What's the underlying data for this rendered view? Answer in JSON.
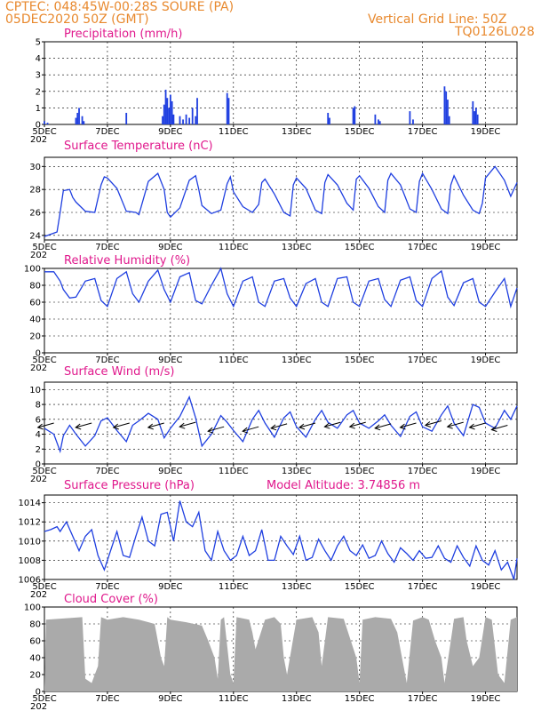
{
  "header": {
    "line1": "CPTEC:   048:45W-00:28S   SOURE (PA)",
    "line2": "05DEC2020 50Z (GMT)",
    "grid_note": "Vertical Grid Line: 50Z",
    "model_code": "TQ0126L028"
  },
  "colors": {
    "header": "#e8892e",
    "title": "#e0188c",
    "series": "#1f3fe0",
    "wind_arrow": "#000000",
    "cloud": "#aaaaaa"
  },
  "x_axis": {
    "labels": [
      "5DEC",
      "7DEC",
      "9DEC",
      "11DEC",
      "13DEC",
      "15DEC",
      "17DEC",
      "19DEC"
    ],
    "label_days": [
      0,
      2,
      4,
      6,
      8,
      10,
      12,
      14
    ],
    "start_day": 0,
    "end_day": 15,
    "year_fragment": "202"
  },
  "chart_data": [
    {
      "id": "precip",
      "type": "bar",
      "title": "Precipitation (mm/h)",
      "ylim": [
        0,
        5
      ],
      "yticks": [
        0,
        1,
        2,
        3,
        4,
        5
      ],
      "grid": true,
      "values": [
        [
          0.0,
          0.2
        ],
        [
          0.1,
          0.1
        ],
        [
          1.0,
          0.4
        ],
        [
          1.05,
          0.7
        ],
        [
          1.1,
          1.0
        ],
        [
          1.2,
          0.5
        ],
        [
          1.25,
          0.2
        ],
        [
          2.6,
          0.7
        ],
        [
          3.75,
          0.5
        ],
        [
          3.8,
          1.2
        ],
        [
          3.85,
          2.1
        ],
        [
          3.9,
          1.6
        ],
        [
          3.95,
          1.0
        ],
        [
          4.0,
          1.8
        ],
        [
          4.05,
          1.4
        ],
        [
          4.1,
          0.6
        ],
        [
          4.3,
          0.5
        ],
        [
          4.4,
          0.3
        ],
        [
          4.5,
          0.6
        ],
        [
          4.6,
          0.4
        ],
        [
          4.7,
          1.0
        ],
        [
          4.8,
          0.5
        ],
        [
          4.85,
          1.6
        ],
        [
          5.8,
          1.9
        ],
        [
          5.85,
          1.6
        ],
        [
          9.0,
          0.7
        ],
        [
          9.05,
          0.4
        ],
        [
          9.8,
          1.0
        ],
        [
          9.85,
          1.1
        ],
        [
          10.5,
          0.6
        ],
        [
          10.6,
          0.3
        ],
        [
          10.65,
          0.2
        ],
        [
          11.6,
          0.8
        ],
        [
          11.7,
          0.3
        ],
        [
          12.7,
          2.3
        ],
        [
          12.75,
          2.0
        ],
        [
          12.8,
          1.5
        ],
        [
          12.85,
          0.5
        ],
        [
          13.6,
          1.4
        ],
        [
          13.65,
          0.8
        ],
        [
          13.7,
          1.0
        ],
        [
          13.75,
          0.6
        ]
      ]
    },
    {
      "id": "temp",
      "type": "line",
      "title": "Surface Temperature (nC)",
      "ylim": [
        23.6,
        30.8
      ],
      "yticks": [
        24,
        26,
        28,
        30
      ],
      "grid": true,
      "x": [
        0,
        0.4,
        0.5,
        0.6,
        0.8,
        0.9,
        1.0,
        1.3,
        1.6,
        1.8,
        1.9,
        2.0,
        2.3,
        2.6,
        2.9,
        3.0,
        3.3,
        3.6,
        3.8,
        3.9,
        4.0,
        4.3,
        4.6,
        4.8,
        4.9,
        5.0,
        5.3,
        5.6,
        5.8,
        5.9,
        6.0,
        6.3,
        6.6,
        6.8,
        6.9,
        7.0,
        7.3,
        7.6,
        7.8,
        7.9,
        8.0,
        8.3,
        8.6,
        8.8,
        8.9,
        9.0,
        9.3,
        9.6,
        9.8,
        9.9,
        10.0,
        10.3,
        10.6,
        10.8,
        10.9,
        11.0,
        11.3,
        11.6,
        11.8,
        11.9,
        12.0,
        12.3,
        12.6,
        12.8,
        12.9,
        13.0,
        13.3,
        13.6,
        13.8,
        13.9,
        14.0,
        14.3,
        14.6,
        14.8,
        15.0
      ],
      "values": [
        23.9,
        24.3,
        26.0,
        27.9,
        28.0,
        27.3,
        26.9,
        26.1,
        26.0,
        28.4,
        29.1,
        29.0,
        28.1,
        26.1,
        26.0,
        25.8,
        28.7,
        29.4,
        28.0,
        26.0,
        25.6,
        26.4,
        28.8,
        29.2,
        28.0,
        26.6,
        25.9,
        26.2,
        28.5,
        29.1,
        27.8,
        26.5,
        26.0,
        26.7,
        28.6,
        28.9,
        27.6,
        26.0,
        25.7,
        28.4,
        29.0,
        28.1,
        26.2,
        25.9,
        28.6,
        29.3,
        28.4,
        26.8,
        26.2,
        28.9,
        29.2,
        28.1,
        26.5,
        26.0,
        28.8,
        29.4,
        28.4,
        26.3,
        26.0,
        28.7,
        29.4,
        28.0,
        26.3,
        25.9,
        28.4,
        29.2,
        27.5,
        26.2,
        25.9,
        26.8,
        29.0,
        30.0,
        28.8,
        27.4,
        28.6
      ]
    },
    {
      "id": "rh",
      "type": "line",
      "title": "Relative Humidity (%)",
      "ylim": [
        0,
        100
      ],
      "yticks": [
        0,
        20,
        40,
        60,
        80,
        100
      ],
      "grid": true,
      "x": [
        0,
        0.3,
        0.5,
        0.6,
        0.8,
        1.0,
        1.3,
        1.6,
        1.8,
        2.0,
        2.3,
        2.6,
        2.8,
        3.0,
        3.3,
        3.6,
        3.8,
        4.0,
        4.3,
        4.6,
        4.8,
        5.0,
        5.3,
        5.6,
        5.8,
        6.0,
        6.3,
        6.6,
        6.8,
        7.0,
        7.3,
        7.6,
        7.8,
        8.0,
        8.3,
        8.6,
        8.8,
        9.0,
        9.3,
        9.6,
        9.8,
        10.0,
        10.3,
        10.6,
        10.8,
        11.0,
        11.3,
        11.6,
        11.8,
        12.0,
        12.3,
        12.6,
        12.8,
        13.0,
        13.3,
        13.6,
        13.8,
        14.0,
        14.3,
        14.6,
        14.8,
        15.0
      ],
      "values": [
        96,
        96,
        85,
        75,
        65,
        66,
        85,
        88,
        62,
        55,
        88,
        96,
        70,
        60,
        85,
        98,
        75,
        60,
        90,
        95,
        62,
        58,
        80,
        100,
        70,
        55,
        85,
        90,
        60,
        55,
        85,
        88,
        65,
        55,
        82,
        88,
        60,
        55,
        88,
        90,
        60,
        55,
        85,
        88,
        63,
        55,
        86,
        90,
        62,
        55,
        88,
        97,
        66,
        56,
        83,
        88,
        60,
        55,
        72,
        88,
        55,
        77
      ]
    },
    {
      "id": "wind",
      "type": "line",
      "title": "Surface Wind (m/s)",
      "ylim": [
        0,
        11
      ],
      "yticks": [
        0,
        2,
        4,
        6,
        8,
        10
      ],
      "grid": true,
      "x": [
        0,
        0.3,
        0.5,
        0.6,
        0.8,
        1.0,
        1.3,
        1.6,
        1.8,
        2.0,
        2.3,
        2.6,
        2.8,
        3.0,
        3.3,
        3.6,
        3.8,
        4.0,
        4.3,
        4.6,
        4.8,
        5.0,
        5.3,
        5.6,
        5.8,
        6.0,
        6.3,
        6.6,
        6.8,
        7.0,
        7.3,
        7.6,
        7.8,
        8.0,
        8.3,
        8.6,
        8.8,
        9.0,
        9.3,
        9.6,
        9.8,
        10.0,
        10.3,
        10.6,
        10.8,
        11.0,
        11.3,
        11.6,
        11.8,
        12.0,
        12.3,
        12.6,
        12.8,
        13.0,
        13.3,
        13.6,
        13.8,
        14.0,
        14.3,
        14.6,
        14.8,
        15.0
      ],
      "values": [
        4.8,
        4.0,
        1.7,
        3.8,
        5.2,
        4.0,
        2.4,
        3.8,
        5.8,
        6.2,
        4.5,
        3.0,
        5.2,
        5.8,
        6.8,
        6.0,
        3.5,
        4.8,
        6.4,
        9.0,
        6.2,
        2.4,
        4.0,
        6.5,
        5.6,
        4.5,
        3.0,
        6.0,
        7.2,
        5.5,
        3.6,
        6.2,
        7.0,
        5.0,
        3.6,
        6.0,
        7.2,
        5.6,
        4.8,
        6.6,
        7.2,
        5.5,
        4.8,
        5.8,
        6.6,
        5.2,
        3.7,
        6.4,
        7.0,
        5.0,
        4.4,
        6.6,
        7.8,
        5.5,
        3.8,
        8.0,
        7.6,
        5.5,
        4.8,
        7.2,
        6.0,
        7.8
      ],
      "arrows_x": [
        0.3,
        1.5,
        2.7,
        3.8,
        4.8,
        5.7,
        6.8,
        7.7,
        8.6,
        9.4,
        10.2,
        11.0,
        11.8,
        12.6,
        13.3,
        14.0,
        14.7
      ],
      "arrows_y": [
        5.5,
        5.5,
        5.5,
        5.5,
        5.6,
        5.0,
        5.0,
        5.4,
        5.5,
        5.6,
        5.6,
        5.4,
        5.5,
        5.8,
        5.6,
        5.5,
        5.2
      ]
    },
    {
      "id": "pressure",
      "type": "line",
      "title": "Surface Pressure (hPa)",
      "subtitle": "Model Altitude: 3.74856  m",
      "ylim": [
        1006,
        1014.8
      ],
      "yticks": [
        1006,
        1008,
        1010,
        1012,
        1014
      ],
      "grid": true,
      "x": [
        0,
        0.2,
        0.4,
        0.5,
        0.7,
        0.9,
        1.1,
        1.3,
        1.5,
        1.7,
        1.9,
        2.1,
        2.3,
        2.5,
        2.7,
        2.9,
        3.1,
        3.3,
        3.5,
        3.7,
        3.9,
        4.1,
        4.3,
        4.5,
        4.7,
        4.9,
        5.1,
        5.3,
        5.5,
        5.7,
        5.9,
        6.1,
        6.3,
        6.5,
        6.7,
        6.9,
        7.1,
        7.3,
        7.5,
        7.7,
        7.9,
        8.1,
        8.3,
        8.5,
        8.7,
        8.9,
        9.1,
        9.3,
        9.5,
        9.7,
        9.9,
        10.1,
        10.3,
        10.5,
        10.7,
        10.9,
        11.1,
        11.3,
        11.5,
        11.7,
        11.9,
        12.1,
        12.3,
        12.5,
        12.7,
        12.9,
        13.1,
        13.3,
        13.5,
        13.7,
        13.9,
        14.1,
        14.3,
        14.5,
        14.7,
        14.9,
        15.0
      ],
      "values": [
        1011.0,
        1011.2,
        1011.5,
        1011.0,
        1012.0,
        1010.5,
        1009.0,
        1010.5,
        1011.2,
        1008.5,
        1007.0,
        1009.0,
        1011.0,
        1008.5,
        1008.3,
        1010.5,
        1012.5,
        1010.0,
        1009.5,
        1012.8,
        1013.0,
        1010.0,
        1014.2,
        1012.0,
        1011.5,
        1013.0,
        1009.0,
        1008.0,
        1011.0,
        1009.0,
        1008.0,
        1008.5,
        1010.5,
        1008.5,
        1009.0,
        1011.2,
        1008.0,
        1008.0,
        1010.5,
        1009.5,
        1008.6,
        1010.5,
        1008.0,
        1008.3,
        1010.2,
        1009.0,
        1008.0,
        1009.5,
        1010.5,
        1009.0,
        1008.5,
        1009.6,
        1008.2,
        1008.5,
        1010.0,
        1008.7,
        1007.8,
        1009.3,
        1008.7,
        1008.0,
        1009.0,
        1008.2,
        1008.3,
        1009.5,
        1008.2,
        1007.8,
        1009.5,
        1008.3,
        1007.4,
        1009.5,
        1008.0,
        1007.5,
        1009.0,
        1007.0,
        1007.8,
        1006.0,
        1008.2
      ]
    },
    {
      "id": "cloud",
      "type": "area",
      "title": "Cloud Cover (%)",
      "ylim": [
        0,
        100
      ],
      "yticks": [
        0,
        20,
        40,
        60,
        80,
        100
      ],
      "grid": true,
      "x": [
        0,
        0.05,
        1.2,
        1.3,
        1.5,
        1.6,
        1.7,
        1.8,
        2.0,
        2.5,
        3.0,
        3.5,
        3.7,
        3.8,
        3.9,
        4.0,
        4.5,
        5.0,
        5.2,
        5.4,
        5.5,
        5.6,
        5.7,
        5.9,
        6.0,
        6.1,
        6.5,
        6.6,
        6.7,
        7.0,
        7.3,
        7.5,
        7.6,
        7.7,
        8.0,
        8.5,
        8.7,
        8.8,
        9.0,
        9.5,
        9.9,
        10.0,
        10.1,
        10.5,
        11.0,
        11.2,
        11.4,
        11.5,
        11.7,
        12.0,
        12.2,
        12.4,
        12.6,
        12.7,
        13.0,
        13.3,
        13.4,
        13.6,
        13.8,
        14.0,
        14.2,
        14.4,
        14.6,
        14.8,
        15.0
      ],
      "values": [
        5,
        85,
        88,
        15,
        10,
        20,
        30,
        88,
        85,
        88,
        85,
        80,
        40,
        30,
        88,
        85,
        82,
        78,
        60,
        40,
        15,
        85,
        88,
        20,
        10,
        88,
        85,
        70,
        50,
        85,
        88,
        80,
        40,
        20,
        85,
        88,
        70,
        30,
        88,
        86,
        40,
        10,
        85,
        88,
        86,
        70,
        30,
        10,
        84,
        88,
        85,
        60,
        40,
        10,
        86,
        88,
        60,
        30,
        40,
        88,
        85,
        20,
        10,
        85,
        88
      ]
    }
  ]
}
